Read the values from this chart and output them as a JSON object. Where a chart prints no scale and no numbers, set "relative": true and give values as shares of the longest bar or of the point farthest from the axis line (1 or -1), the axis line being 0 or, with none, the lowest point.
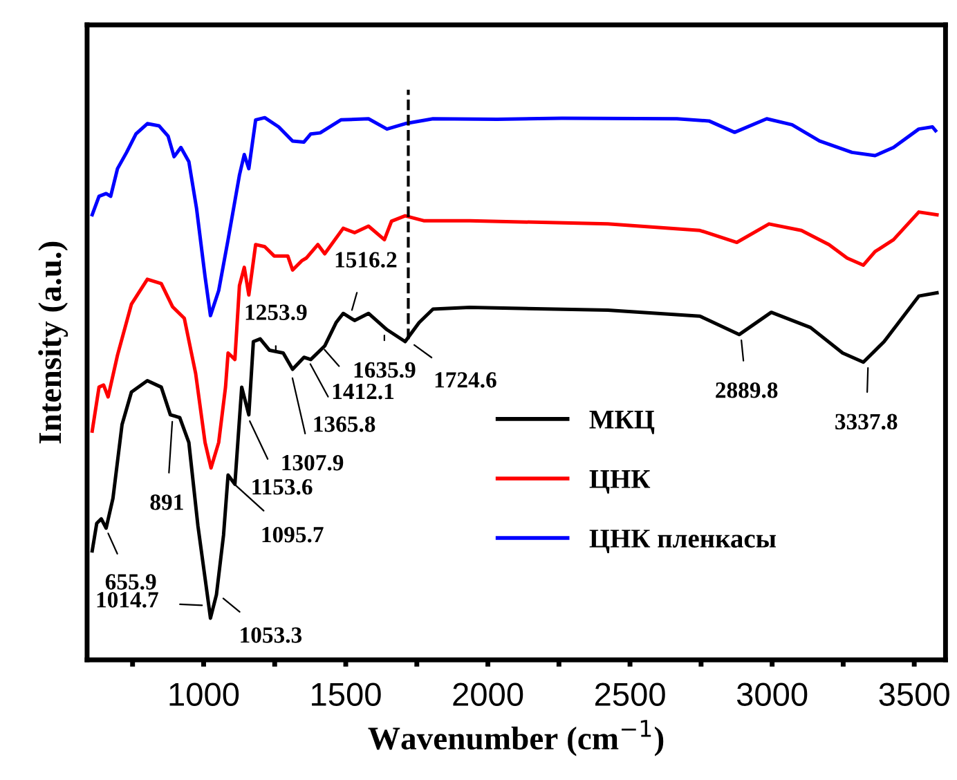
{
  "chart_data": {
    "type": "line",
    "relative": true,
    "xlabel": "Wavenumber (cm$^{−1}$)",
    "ylabel": "Intensity (a.u.)",
    "xlim": [
      590,
      3610
    ],
    "xticks": [
      {
        "value": 750,
        "label": null
      },
      1000,
      {
        "value": 1250,
        "label": null
      },
      1500,
      {
        "value": 1750,
        "label": null
      },
      2000,
      {
        "value": 2250,
        "label": null
      },
      2500,
      {
        "value": 2750,
        "label": null
      },
      3000,
      {
        "value": 3250,
        "label": null
      },
      3500
    ],
    "tick_labels": "x",
    "grid": false,
    "legend": "bottom right",
    "line_style": "solid",
    "marker": "none",
    "series": [
      {
        "name": "МКЦ",
        "color": "#000000",
        "x": [
          608,
          624,
          640,
          657,
          681,
          713,
          746,
          802,
          851,
          883,
          916,
          948,
          980,
          1013,
          1024,
          1045,
          1070,
          1086,
          1110,
          1134,
          1159,
          1175,
          1199,
          1232,
          1280,
          1313,
          1353,
          1377,
          1426,
          1466,
          1491,
          1531,
          1580,
          1645,
          1709,
          1758,
          1807,
          1936,
          2422,
          2746,
          2884,
          2997,
          3135,
          3248,
          3321,
          3394,
          3516,
          3580
        ],
        "values": [
          0.201,
          0.252,
          0.26,
          0.243,
          0.298,
          0.434,
          0.494,
          0.515,
          0.503,
          0.452,
          0.447,
          0.401,
          0.247,
          0.12,
          0.077,
          0.12,
          0.23,
          0.341,
          0.324,
          0.503,
          0.452,
          0.587,
          0.592,
          0.571,
          0.566,
          0.536,
          0.558,
          0.554,
          0.579,
          0.622,
          0.639,
          0.626,
          0.639,
          0.609,
          0.587,
          0.622,
          0.647,
          0.65,
          0.645,
          0.634,
          0.6,
          0.641,
          0.613,
          0.566,
          0.549,
          0.587,
          0.671,
          0.677
        ]
      },
      {
        "name": "ЦНК",
        "color": "#ff0000",
        "x": [
          608,
          632,
          648,
          664,
          697,
          746,
          802,
          851,
          891,
          932,
          972,
          1005,
          1026,
          1053,
          1077,
          1086,
          1110,
          1126,
          1143,
          1159,
          1183,
          1215,
          1248,
          1296,
          1313,
          1345,
          1361,
          1402,
          1426,
          1491,
          1531,
          1580,
          1636,
          1661,
          1709,
          1774,
          1936,
          2422,
          2746,
          2876,
          2989,
          3103,
          3200,
          3264,
          3321,
          3362,
          3427,
          3516,
          3580
        ],
        "values": [
          0.422,
          0.503,
          0.507,
          0.485,
          0.562,
          0.656,
          0.702,
          0.694,
          0.651,
          0.63,
          0.528,
          0.401,
          0.354,
          0.401,
          0.503,
          0.566,
          0.554,
          0.69,
          0.724,
          0.673,
          0.766,
          0.762,
          0.745,
          0.745,
          0.719,
          0.736,
          0.741,
          0.766,
          0.749,
          0.796,
          0.788,
          0.8,
          0.775,
          0.809,
          0.819,
          0.81,
          0.81,
          0.804,
          0.792,
          0.77,
          0.804,
          0.792,
          0.766,
          0.741,
          0.728,
          0.753,
          0.775,
          0.826,
          0.821
        ]
      },
      {
        "name": "ЦНК пленкасы",
        "color": "#0000ff",
        "x": [
          608,
          632,
          657,
          673,
          697,
          729,
          762,
          802,
          843,
          875,
          896,
          920,
          948,
          975,
          1005,
          1024,
          1053,
          1086,
          1126,
          1143,
          1159,
          1183,
          1215,
          1264,
          1313,
          1353,
          1377,
          1410,
          1483,
          1580,
          1645,
          1709,
          1807,
          2033,
          2260,
          2665,
          2778,
          2868,
          2981,
          3070,
          3167,
          3281,
          3362,
          3427,
          3516,
          3564,
          3575
        ],
        "values": [
          0.821,
          0.855,
          0.86,
          0.855,
          0.906,
          0.936,
          0.97,
          0.989,
          0.985,
          0.966,
          0.928,
          0.945,
          0.919,
          0.833,
          0.707,
          0.635,
          0.681,
          0.775,
          0.894,
          0.932,
          0.906,
          0.996,
          1.0,
          0.983,
          0.957,
          0.955,
          0.97,
          0.972,
          0.996,
          0.998,
          0.979,
          0.989,
          0.998,
          0.997,
          0.999,
          0.998,
          0.994,
          0.973,
          0.998,
          0.987,
          0.957,
          0.936,
          0.93,
          0.945,
          0.979,
          0.983,
          0.976
        ]
      }
    ],
    "ref_lines": [
      {
        "axis": "x",
        "value": 1720,
        "line_style": "dashed",
        "color": "#000000"
      }
    ],
    "annotations": [
      {
        "text": "655.9",
        "x": 655.9,
        "y": 0.243
      },
      {
        "text": "891",
        "x": 891,
        "y": 0.45
      },
      {
        "text": "1014.7",
        "x": 1014.7,
        "y": 0.1
      },
      {
        "text": "1053.3",
        "x": 1053.3,
        "y": 0.12
      },
      {
        "text": "1095.7",
        "x": 1095.7,
        "y": 0.33
      },
      {
        "text": "1153.6",
        "x": 1153.6,
        "y": 0.45
      },
      {
        "text": "1307.9",
        "x": 1307.9,
        "y": 0.53
      },
      {
        "text": "1365.8",
        "x": 1365.8,
        "y": 0.555
      },
      {
        "text": "1412.1",
        "x": 1412.1,
        "y": 0.58
      },
      {
        "text": "1253.9",
        "x": 1253.9,
        "y": 0.57
      },
      {
        "text": "1516.2",
        "x": 1516.2,
        "y": 0.635
      },
      {
        "text": "1635.9",
        "x": 1635.9,
        "y": 0.609
      },
      {
        "text": "1724.6",
        "x": 1724.6,
        "y": 0.587
      },
      {
        "text": "2889.8",
        "x": 2889.8,
        "y": 0.6
      },
      {
        "text": "3337.8",
        "x": 3337.8,
        "y": 0.549
      }
    ]
  }
}
